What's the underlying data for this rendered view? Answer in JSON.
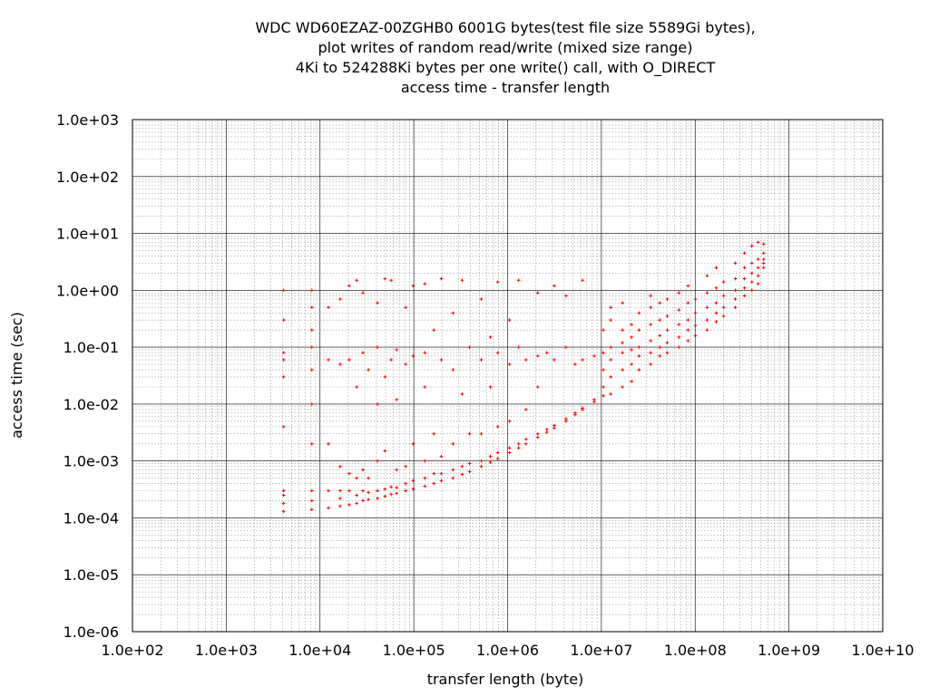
{
  "chart_data": {
    "type": "scatter",
    "title_lines": [
      "WDC WD60EZAZ-00ZGHB0 6001G bytes(test file size 5589Gi bytes),",
      "plot writes of random read/write (mixed size range)",
      "4Ki to 524288Ki bytes per one write() call, with O_DIRECT",
      "access time - transfer length"
    ],
    "xlabel": "transfer length (byte)",
    "ylabel": "access time (sec)",
    "x_scale": "log",
    "y_scale": "log",
    "xlim": [
      100,
      10000000000
    ],
    "ylim": [
      1e-06,
      1000
    ],
    "x_ticks": [
      {
        "value": 100,
        "label": "1.0e+02"
      },
      {
        "value": 1000,
        "label": "1.0e+03"
      },
      {
        "value": 10000,
        "label": "1.0e+04"
      },
      {
        "value": 100000,
        "label": "1.0e+05"
      },
      {
        "value": 1000000,
        "label": "1.0e+06"
      },
      {
        "value": 10000000,
        "label": "1.0e+07"
      },
      {
        "value": 100000000,
        "label": "1.0e+08"
      },
      {
        "value": 1000000000,
        "label": "1.0e+09"
      },
      {
        "value": 10000000000,
        "label": "1.0e+10"
      }
    ],
    "y_ticks": [
      {
        "value": 1e-06,
        "label": "1.0e-06"
      },
      {
        "value": 1e-05,
        "label": "1.0e-05"
      },
      {
        "value": 0.0001,
        "label": "1.0e-04"
      },
      {
        "value": 0.001,
        "label": "1.0e-03"
      },
      {
        "value": 0.01,
        "label": "1.0e-02"
      },
      {
        "value": 0.1,
        "label": "1.0e-01"
      },
      {
        "value": 1,
        "label": "1.0e+00"
      },
      {
        "value": 10,
        "label": "1.0e+01"
      },
      {
        "value": 100,
        "label": "1.0e+02"
      },
      {
        "value": 1000,
        "label": "1.0e+03"
      }
    ],
    "grid": true,
    "series": [
      {
        "color": "#ff0000",
        "marker": "plus",
        "points": [
          [
            4096,
            0.00013
          ],
          [
            4096,
            0.00018
          ],
          [
            4096,
            0.00025
          ],
          [
            4096,
            0.0003
          ],
          [
            4096,
            0.004
          ],
          [
            4096,
            0.03
          ],
          [
            4096,
            0.06
          ],
          [
            4096,
            0.08
          ],
          [
            4096,
            0.3
          ],
          [
            4096,
            1.0
          ],
          [
            8192,
            0.00014
          ],
          [
            8192,
            0.0002
          ],
          [
            8192,
            0.0003
          ],
          [
            8192,
            0.002
          ],
          [
            8192,
            0.01
          ],
          [
            8192,
            0.04
          ],
          [
            8192,
            0.1
          ],
          [
            8192,
            0.2
          ],
          [
            8192,
            0.5
          ],
          [
            8192,
            1.0
          ],
          [
            12288,
            0.00015
          ],
          [
            12288,
            0.0003
          ],
          [
            12288,
            0.002
          ],
          [
            12288,
            0.06
          ],
          [
            12288,
            0.5
          ],
          [
            16384,
            0.00016
          ],
          [
            16384,
            0.00022
          ],
          [
            16384,
            0.0003
          ],
          [
            16384,
            0.0008
          ],
          [
            16384,
            0.05
          ],
          [
            16384,
            0.7
          ],
          [
            20480,
            0.00017
          ],
          [
            20480,
            0.0003
          ],
          [
            20480,
            0.0006
          ],
          [
            20480,
            0.06
          ],
          [
            20480,
            1.2
          ],
          [
            24576,
            0.00018
          ],
          [
            24576,
            0.00025
          ],
          [
            24576,
            0.0005
          ],
          [
            24576,
            0.02
          ],
          [
            24576,
            1.5
          ],
          [
            28672,
            0.0002
          ],
          [
            28672,
            0.0003
          ],
          [
            28672,
            0.0007
          ],
          [
            28672,
            0.08
          ],
          [
            28672,
            0.9
          ],
          [
            32768,
            0.00021
          ],
          [
            32768,
            0.00028
          ],
          [
            32768,
            0.0005
          ],
          [
            32768,
            0.04
          ],
          [
            40960,
            0.00022
          ],
          [
            40960,
            0.0003
          ],
          [
            40960,
            0.001
          ],
          [
            40960,
            0.01
          ],
          [
            40960,
            0.1
          ],
          [
            40960,
            0.6
          ],
          [
            49152,
            0.00024
          ],
          [
            49152,
            0.00032
          ],
          [
            49152,
            0.0015
          ],
          [
            49152,
            0.03
          ],
          [
            49152,
            1.6
          ],
          [
            57344,
            0.00026
          ],
          [
            57344,
            0.00035
          ],
          [
            57344,
            0.06
          ],
          [
            57344,
            1.5
          ],
          [
            65536,
            0.00027
          ],
          [
            65536,
            0.00034
          ],
          [
            65536,
            0.0007
          ],
          [
            65536,
            0.012
          ],
          [
            65536,
            0.09
          ],
          [
            81920,
            0.0003
          ],
          [
            81920,
            0.0004
          ],
          [
            81920,
            0.0008
          ],
          [
            81920,
            0.05
          ],
          [
            81920,
            0.5
          ],
          [
            98304,
            0.00032
          ],
          [
            98304,
            0.00045
          ],
          [
            98304,
            0.002
          ],
          [
            98304,
            0.07
          ],
          [
            98304,
            1.2
          ],
          [
            131072,
            0.00036
          ],
          [
            131072,
            0.0005
          ],
          [
            131072,
            0.001
          ],
          [
            131072,
            0.02
          ],
          [
            131072,
            0.08
          ],
          [
            131072,
            1.3
          ],
          [
            163840,
            0.0004
          ],
          [
            163840,
            0.0006
          ],
          [
            163840,
            0.003
          ],
          [
            163840,
            0.2
          ],
          [
            196608,
            0.00045
          ],
          [
            196608,
            0.0006
          ],
          [
            196608,
            0.0012
          ],
          [
            196608,
            0.06
          ],
          [
            196608,
            1.6
          ],
          [
            262144,
            0.0005
          ],
          [
            262144,
            0.0007
          ],
          [
            262144,
            0.002
          ],
          [
            262144,
            0.04
          ],
          [
            262144,
            0.4
          ],
          [
            327680,
            0.00058
          ],
          [
            327680,
            0.0008
          ],
          [
            327680,
            0.015
          ],
          [
            327680,
            1.5
          ],
          [
            393216,
            0.00065
          ],
          [
            393216,
            0.0009
          ],
          [
            393216,
            0.003
          ],
          [
            393216,
            0.1
          ],
          [
            524288,
            0.0008
          ],
          [
            524288,
            0.001
          ],
          [
            524288,
            0.003
          ],
          [
            524288,
            0.06
          ],
          [
            524288,
            0.7
          ],
          [
            655360,
            0.00095
          ],
          [
            655360,
            0.0012
          ],
          [
            655360,
            0.02
          ],
          [
            655360,
            0.15
          ],
          [
            786432,
            0.0011
          ],
          [
            786432,
            0.0014
          ],
          [
            786432,
            0.004
          ],
          [
            786432,
            0.08
          ],
          [
            786432,
            1.4
          ],
          [
            1048576,
            0.0014
          ],
          [
            1048576,
            0.0017
          ],
          [
            1048576,
            0.005
          ],
          [
            1048576,
            0.05
          ],
          [
            1048576,
            0.3
          ],
          [
            1310720,
            0.0017
          ],
          [
            1310720,
            0.002
          ],
          [
            1310720,
            0.1
          ],
          [
            1310720,
            1.5
          ],
          [
            1572864,
            0.002
          ],
          [
            1572864,
            0.0024
          ],
          [
            1572864,
            0.008
          ],
          [
            1572864,
            0.06
          ],
          [
            2097152,
            0.0026
          ],
          [
            2097152,
            0.003
          ],
          [
            2097152,
            0.02
          ],
          [
            2097152,
            0.07
          ],
          [
            2097152,
            0.9
          ],
          [
            2621440,
            0.0032
          ],
          [
            2621440,
            0.0036
          ],
          [
            2621440,
            0.08
          ],
          [
            3145728,
            0.0038
          ],
          [
            3145728,
            0.0042
          ],
          [
            3145728,
            0.06
          ],
          [
            3145728,
            1.2
          ],
          [
            4194304,
            0.005
          ],
          [
            4194304,
            0.0055
          ],
          [
            4194304,
            0.1
          ],
          [
            4194304,
            0.8
          ],
          [
            5242880,
            0.0065
          ],
          [
            5242880,
            0.007
          ],
          [
            5242880,
            0.05
          ],
          [
            6291456,
            0.008
          ],
          [
            6291456,
            0.0085
          ],
          [
            6291456,
            0.06
          ],
          [
            6291456,
            1.5
          ],
          [
            8388608,
            0.011
          ],
          [
            8388608,
            0.012
          ],
          [
            8388608,
            0.07
          ],
          [
            10485760,
            0.014
          ],
          [
            10485760,
            0.02
          ],
          [
            10485760,
            0.04
          ],
          [
            10485760,
            0.08
          ],
          [
            10485760,
            0.2
          ],
          [
            12582912,
            0.015
          ],
          [
            12582912,
            0.03
          ],
          [
            12582912,
            0.06
          ],
          [
            12582912,
            0.1
          ],
          [
            12582912,
            0.3
          ],
          [
            12582912,
            0.5
          ],
          [
            16777216,
            0.02
          ],
          [
            16777216,
            0.04
          ],
          [
            16777216,
            0.08
          ],
          [
            16777216,
            0.12
          ],
          [
            16777216,
            0.2
          ],
          [
            16777216,
            0.6
          ],
          [
            20971520,
            0.025
          ],
          [
            20971520,
            0.05
          ],
          [
            20971520,
            0.09
          ],
          [
            20971520,
            0.15
          ],
          [
            20971520,
            0.25
          ],
          [
            25165824,
            0.04
          ],
          [
            25165824,
            0.07
          ],
          [
            25165824,
            0.1
          ],
          [
            25165824,
            0.2
          ],
          [
            25165824,
            0.4
          ],
          [
            33554432,
            0.05
          ],
          [
            33554432,
            0.08
          ],
          [
            33554432,
            0.13
          ],
          [
            33554432,
            0.25
          ],
          [
            33554432,
            0.5
          ],
          [
            33554432,
            0.8
          ],
          [
            41943040,
            0.07
          ],
          [
            41943040,
            0.1
          ],
          [
            41943040,
            0.16
          ],
          [
            41943040,
            0.3
          ],
          [
            41943040,
            0.6
          ],
          [
            50331648,
            0.08
          ],
          [
            50331648,
            0.12
          ],
          [
            50331648,
            0.2
          ],
          [
            50331648,
            0.35
          ],
          [
            50331648,
            0.7
          ],
          [
            67108864,
            0.1
          ],
          [
            67108864,
            0.15
          ],
          [
            67108864,
            0.25
          ],
          [
            67108864,
            0.45
          ],
          [
            67108864,
            0.9
          ],
          [
            83886080,
            0.13
          ],
          [
            83886080,
            0.2
          ],
          [
            83886080,
            0.3
          ],
          [
            83886080,
            0.6
          ],
          [
            83886080,
            1.2
          ],
          [
            100663296,
            0.16
          ],
          [
            100663296,
            0.24
          ],
          [
            100663296,
            0.4
          ],
          [
            100663296,
            0.7
          ],
          [
            134217728,
            0.2
          ],
          [
            134217728,
            0.3
          ],
          [
            134217728,
            0.5
          ],
          [
            134217728,
            0.9
          ],
          [
            134217728,
            1.8
          ],
          [
            167772160,
            0.28
          ],
          [
            167772160,
            0.4
          ],
          [
            167772160,
            0.6
          ],
          [
            167772160,
            1.1
          ],
          [
            167772160,
            2.5
          ],
          [
            201326592,
            0.35
          ],
          [
            201326592,
            0.5
          ],
          [
            201326592,
            0.8
          ],
          [
            201326592,
            1.4
          ],
          [
            268435456,
            0.5
          ],
          [
            268435456,
            0.7
          ],
          [
            268435456,
            1.0
          ],
          [
            268435456,
            1.6
          ],
          [
            268435456,
            3.0
          ],
          [
            335544320,
            0.8
          ],
          [
            335544320,
            1.1
          ],
          [
            335544320,
            1.6
          ],
          [
            335544320,
            2.5
          ],
          [
            335544320,
            4.5
          ],
          [
            402653184,
            1.0
          ],
          [
            402653184,
            1.4
          ],
          [
            402653184,
            2.0
          ],
          [
            402653184,
            3.0
          ],
          [
            402653184,
            6.0
          ],
          [
            469762048,
            1.3
          ],
          [
            469762048,
            1.8
          ],
          [
            469762048,
            2.5
          ],
          [
            469762048,
            3.5
          ],
          [
            469762048,
            7.0
          ],
          [
            536870912,
            2.5
          ],
          [
            536870912,
            3.0
          ],
          [
            536870912,
            3.5
          ],
          [
            536870912,
            4.5
          ],
          [
            536870912,
            6.5
          ]
        ]
      }
    ]
  }
}
